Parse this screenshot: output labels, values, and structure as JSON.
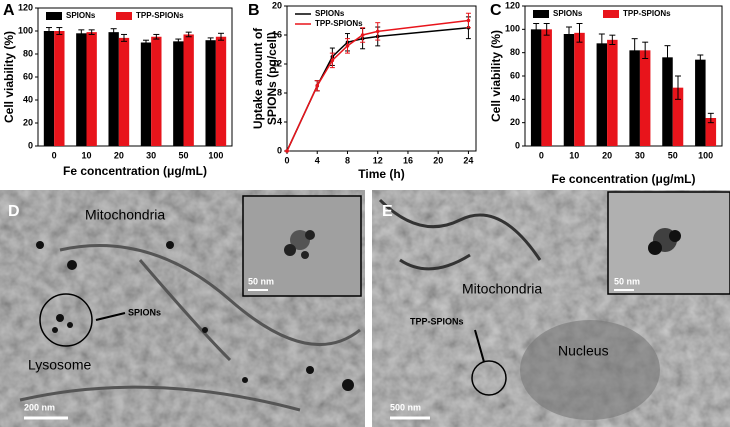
{
  "chart_data": [
    {
      "type": "bar",
      "panel_label": "A",
      "xlabel": "Fe concentration (μg/mL)",
      "ylabel": "Cell viability (%)",
      "categories": [
        "0",
        "10",
        "20",
        "30",
        "50",
        "100"
      ],
      "series": [
        {
          "name": "SPIONs",
          "color": "#000000",
          "values": [
            100,
            98,
            99,
            90,
            91,
            92
          ],
          "errors": [
            3,
            3,
            3,
            2,
            2,
            2
          ]
        },
        {
          "name": "TPP-SPIONs",
          "color": "#e8141b",
          "values": [
            100,
            99,
            94,
            95,
            97,
            95
          ],
          "errors": [
            3,
            2,
            3,
            2,
            2,
            3
          ]
        }
      ],
      "ylim": [
        0,
        120
      ],
      "yticks": [
        0,
        20,
        40,
        60,
        80,
        100,
        120
      ],
      "legend": "top"
    },
    {
      "type": "line",
      "panel_label": "B",
      "xlabel": "Time (h)",
      "ylabel": [
        "Uptake amount of",
        "SPIONs (pg/cell)"
      ],
      "x": [
        0,
        4,
        6,
        8,
        10,
        12,
        24
      ],
      "series": [
        {
          "name": "SPIONs",
          "color": "#000000",
          "values": [
            0,
            9,
            13,
            15,
            15.5,
            15.8,
            17
          ],
          "errors": [
            0,
            0.7,
            1.2,
            1.2,
            1.4,
            1.3,
            1.5
          ]
        },
        {
          "name": "TPP-SPIONs",
          "color": "#e8141b",
          "values": [
            0,
            9,
            12.5,
            14.5,
            16,
            16.5,
            18
          ],
          "errors": [
            0,
            0.7,
            1.0,
            1.0,
            1.0,
            1.2,
            1.0
          ]
        }
      ],
      "xlim": [
        0,
        25
      ],
      "xticks": [
        0,
        4,
        8,
        12,
        16,
        20,
        24
      ],
      "ylim": [
        0,
        20
      ],
      "yticks": [
        0,
        4,
        8,
        12,
        16,
        20
      ],
      "legend": "upper left"
    },
    {
      "type": "bar",
      "panel_label": "C",
      "xlabel": "Fe concentration (μg/mL)",
      "ylabel": "Cell viability (%)",
      "categories": [
        "0",
        "10",
        "20",
        "30",
        "50",
        "100"
      ],
      "series": [
        {
          "name": "SPIONs",
          "color": "#000000",
          "values": [
            100,
            96,
            88,
            82,
            76,
            74
          ],
          "errors": [
            5,
            6,
            8,
            10,
            10,
            4
          ]
        },
        {
          "name": "TPP-SPIONs",
          "color": "#e8141b",
          "values": [
            100,
            97,
            91,
            82,
            50,
            24
          ],
          "errors": [
            5,
            8,
            4,
            7,
            10,
            4
          ]
        }
      ],
      "ylim": [
        0,
        120
      ],
      "yticks": [
        0,
        20,
        40,
        60,
        80,
        100,
        120
      ],
      "legend": "top"
    }
  ],
  "micrographs": [
    {
      "panel_label": "D",
      "labels": [
        "Mitochondria",
        "SPIONs",
        "Lysosome"
      ],
      "scale_bar": "200 nm",
      "inset_scale_bar": "50 nm"
    },
    {
      "panel_label": "E",
      "labels": [
        "Mitochondria",
        "TPP-SPIONs",
        "Nucleus"
      ],
      "scale_bar": "500 nm",
      "inset_scale_bar": "50 nm"
    }
  ]
}
